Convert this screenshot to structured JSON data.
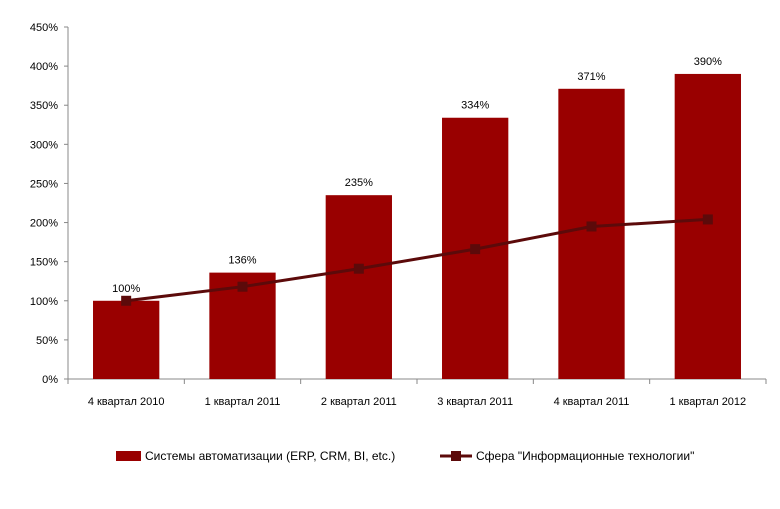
{
  "chart_data": {
    "type": "bar",
    "categories": [
      "4 квартал 2010",
      "1 квартал 2011",
      "2 квартал 2011",
      "3 квартал 2011",
      "4 квартал 2011",
      "1 квартал 2012"
    ],
    "series": [
      {
        "name": "Системы автоматизации (ERP, CRM, BI, etc.)",
        "kind": "bar",
        "color": "#990000",
        "values": [
          100,
          136,
          235,
          334,
          371,
          390
        ],
        "data_labels": [
          "100%",
          "136%",
          "235%",
          "334%",
          "371%",
          "390%"
        ]
      },
      {
        "name": "Сфера \"Информационные технологии\"",
        "kind": "line",
        "marker": "square",
        "color": "#5c0a0a",
        "values": [
          100,
          118,
          141,
          166,
          195,
          204
        ]
      }
    ],
    "ylim": [
      0,
      450
    ],
    "yticks": [
      0,
      50,
      100,
      150,
      200,
      250,
      300,
      350,
      400,
      450
    ],
    "ytick_labels": [
      "0%",
      "50%",
      "100%",
      "150%",
      "200%",
      "250%",
      "300%",
      "350%",
      "400%",
      "450%"
    ],
    "grid": false,
    "legend_position": "bottom"
  }
}
